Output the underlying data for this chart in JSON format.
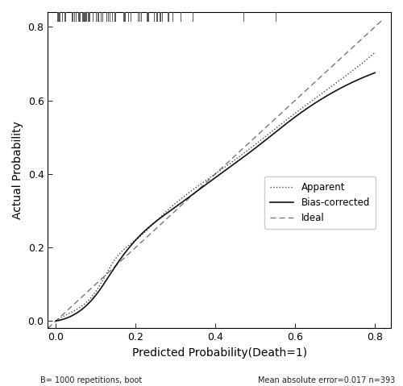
{
  "xlabel": "Predicted Probability(Death=1)",
  "ylabel": "Actual Probability",
  "xlim": [
    -0.02,
    0.84
  ],
  "ylim": [
    -0.02,
    0.84
  ],
  "xticks": [
    0.0,
    0.2,
    0.4,
    0.6,
    0.8
  ],
  "yticks": [
    0.0,
    0.2,
    0.4,
    0.6,
    0.8
  ],
  "bottom_left_text": "B= 1000 repetitions, boot",
  "bottom_right_text": "Mean absolute error=0.017 n=393",
  "legend_labels": [
    "Apparent",
    "Bias-corrected",
    "Ideal"
  ],
  "background_color": "#ffffff",
  "tick_color": "#000000",
  "spine_color": "#000000",
  "rug_color": "#555555",
  "apparent_color": "#444444",
  "biascorr_color": "#111111",
  "ideal_color": "#777777"
}
